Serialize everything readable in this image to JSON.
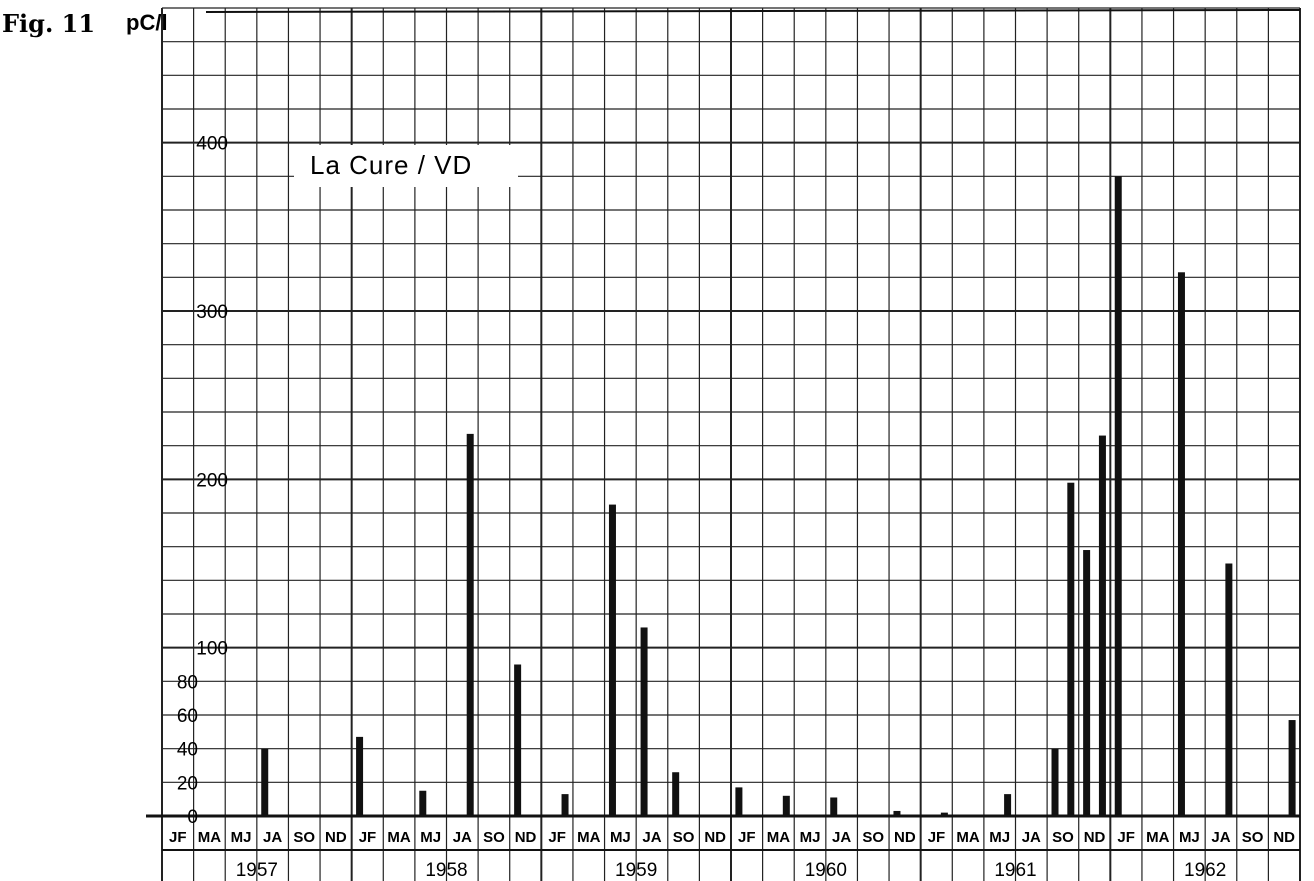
{
  "figure_label": "Fig. 11",
  "chart_data": {
    "type": "bar",
    "title": "La Cure / VD",
    "ylabel": "pC/l",
    "xlabel": "",
    "ylim": [
      0,
      480
    ],
    "y_ticks": [
      0,
      20,
      40,
      60,
      80,
      100,
      200,
      300,
      400
    ],
    "grid": true,
    "years": [
      "1957",
      "1958",
      "1959",
      "1960",
      "1961",
      "1962"
    ],
    "month_pair_labels": [
      "JF",
      "MA",
      "MJ",
      "JA",
      "SO",
      "ND"
    ],
    "bars": [
      {
        "date": "1957-07",
        "value": 40
      },
      {
        "date": "1958-01",
        "value": 47
      },
      {
        "date": "1958-05",
        "value": 15
      },
      {
        "date": "1958-08",
        "value": 227
      },
      {
        "date": "1958-11",
        "value": 90
      },
      {
        "date": "1959-02",
        "value": 13
      },
      {
        "date": "1959-05",
        "value": 185
      },
      {
        "date": "1959-07",
        "value": 112
      },
      {
        "date": "1959-09",
        "value": 26
      },
      {
        "date": "1960-01",
        "value": 17
      },
      {
        "date": "1960-04",
        "value": 12
      },
      {
        "date": "1960-07",
        "value": 11
      },
      {
        "date": "1960-11",
        "value": 3
      },
      {
        "date": "1961-02",
        "value": 2
      },
      {
        "date": "1961-06",
        "value": 13
      },
      {
        "date": "1961-09",
        "value": 40
      },
      {
        "date": "1961-10",
        "value": 198
      },
      {
        "date": "1961-11",
        "value": 158
      },
      {
        "date": "1961-12",
        "value": 226
      },
      {
        "date": "1962-01",
        "value": 380
      },
      {
        "date": "1962-05",
        "value": 323
      },
      {
        "date": "1962-08",
        "value": 150
      },
      {
        "date": "1962-12",
        "value": 57
      }
    ]
  }
}
